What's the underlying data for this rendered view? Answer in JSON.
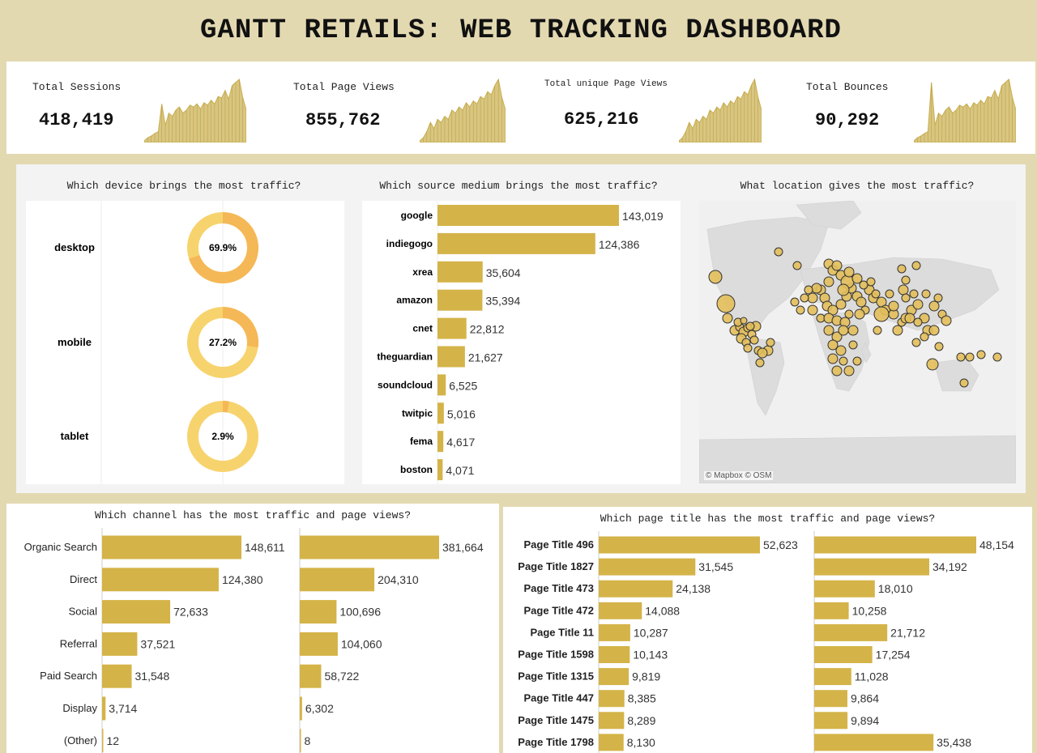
{
  "title": "GANTT RETAILS: WEB TRACKING DASHBOARD",
  "colors": {
    "bar": "#d4b348",
    "donut_light": "#f7d36e",
    "donut_dark": "#f5b856",
    "map_point": "#e2be5a",
    "background": "#e3d9b1"
  },
  "kpis": [
    {
      "label": "Total Sessions",
      "value": "418,419",
      "sparkline": [
        0,
        0.05,
        0.08,
        0.12,
        0.15,
        0.6,
        0.25,
        0.45,
        0.4,
        0.5,
        0.55,
        0.45,
        0.5,
        0.58,
        0.55,
        0.6,
        0.52,
        0.62,
        0.58,
        0.66,
        0.6,
        0.72,
        0.7,
        0.82,
        0.68,
        0.9,
        0.95,
        1.0,
        0.7,
        0.5
      ]
    },
    {
      "label": "Total Page Views",
      "value": "855,762",
      "sparkline": [
        0,
        0.05,
        0.15,
        0.3,
        0.2,
        0.35,
        0.3,
        0.4,
        0.35,
        0.5,
        0.45,
        0.55,
        0.5,
        0.62,
        0.55,
        0.65,
        0.6,
        0.72,
        0.68,
        0.8,
        0.75,
        0.9,
        1.0,
        0.7,
        0.5
      ]
    },
    {
      "label": "Total unique Page Views",
      "value": "625,216",
      "sparkline": [
        0,
        0.05,
        0.15,
        0.3,
        0.2,
        0.35,
        0.3,
        0.4,
        0.35,
        0.5,
        0.45,
        0.55,
        0.5,
        0.62,
        0.55,
        0.65,
        0.6,
        0.72,
        0.68,
        0.8,
        0.75,
        0.9,
        1.0,
        0.7,
        0.5
      ]
    },
    {
      "label": "Total Bounces",
      "value": "90,292",
      "sparkline": [
        0,
        0.05,
        0.08,
        0.12,
        0.15,
        0.95,
        0.25,
        0.45,
        0.4,
        0.5,
        0.55,
        0.45,
        0.5,
        0.58,
        0.55,
        0.6,
        0.52,
        0.62,
        0.58,
        0.66,
        0.6,
        0.72,
        0.7,
        0.82,
        0.68,
        0.9,
        0.95,
        1.0,
        0.7,
        0.5
      ]
    }
  ],
  "device": {
    "question": "Which device brings the most traffic?",
    "items": [
      {
        "label": "desktop",
        "pct": 69.9,
        "display": "69.9%"
      },
      {
        "label": "mobile",
        "pct": 27.2,
        "display": "27.2%"
      },
      {
        "label": "tablet",
        "pct": 2.9,
        "display": "2.9%"
      }
    ]
  },
  "source": {
    "question": "Which source medium brings the most traffic?",
    "chart_data": {
      "type": "bar",
      "categories": [
        "google",
        "indiegogo",
        "xrea",
        "amazon",
        "cnet",
        "theguardian",
        "soundcloud",
        "twitpic",
        "fema",
        "boston"
      ],
      "values": [
        143019,
        124386,
        35604,
        35394,
        22812,
        21627,
        6525,
        5016,
        4617,
        4071
      ],
      "labels": [
        "143,019",
        "124,386",
        "35,604",
        "35,394",
        "22,812",
        "21,627",
        "6,525",
        "5,016",
        "4,617",
        "4,071"
      ]
    }
  },
  "location": {
    "question": "What location gives the most traffic?",
    "attribution": "© Mapbox © OSM"
  },
  "channel": {
    "question": "Which channel has the most traffic and page views?",
    "chart_data": {
      "type": "bar",
      "categories": [
        "Organic Search",
        "Direct",
        "Social",
        "Referral",
        "Paid Search",
        "Display",
        "(Other)"
      ],
      "series": [
        {
          "values": [
            148611,
            124380,
            72633,
            37521,
            31548,
            3714,
            12
          ],
          "labels": [
            "148,611",
            "124,380",
            "72,633",
            "37,521",
            "31,548",
            "3,714",
            "12"
          ]
        },
        {
          "values": [
            381664,
            204310,
            100696,
            104060,
            58722,
            6302,
            8
          ],
          "labels": [
            "381,664",
            "204,310",
            "100,696",
            "104,060",
            "58,722",
            "6,302",
            "8"
          ]
        }
      ]
    }
  },
  "pagetitle": {
    "question": "Which page title has the most traffic and page views?",
    "chart_data": {
      "type": "bar",
      "categories": [
        "Page Title 496",
        "Page Title 1827",
        "Page Title 473",
        "Page Title 472",
        "Page Title 11",
        "Page Title 1598",
        "Page Title 1315",
        "Page Title 447",
        "Page Title 1475",
        "Page Title 1798"
      ],
      "series": [
        {
          "values": [
            52623,
            31545,
            24138,
            14088,
            10287,
            10143,
            9819,
            8385,
            8289,
            8130
          ],
          "labels": [
            "52,623",
            "31,545",
            "24,138",
            "14,088",
            "10,287",
            "10,143",
            "9,819",
            "8,385",
            "8,289",
            "8,130"
          ]
        },
        {
          "values": [
            48154,
            34192,
            18010,
            10258,
            21712,
            17254,
            11028,
            9864,
            9894,
            35438
          ],
          "labels": [
            "48,154",
            "34,192",
            "18,010",
            "10,258",
            "21,712",
            "17,254",
            "11,028",
            "9,864",
            "9,894",
            "35,438"
          ]
        }
      ]
    }
  }
}
